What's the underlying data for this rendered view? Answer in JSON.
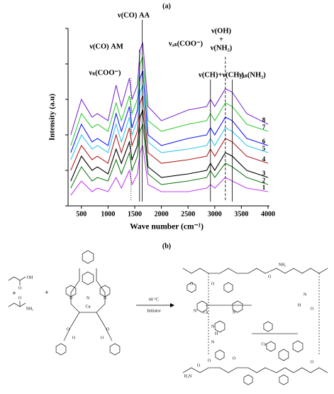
{
  "chart_data": {
    "type": "line",
    "panel": "(a)",
    "x_label": "Wave number (cm⁻¹)",
    "y_label": "Intensity (a.u)",
    "x": [
      300,
      500,
      700,
      800,
      1000,
      1150,
      1250,
      1400,
      1450,
      1550,
      1600,
      1650,
      1750,
      2000,
      2500,
      2850,
      2920,
      3000,
      3200,
      3330,
      3600,
      4000
    ],
    "xlim": [
      250,
      4000
    ],
    "xticks": [
      500,
      1000,
      1500,
      2000,
      2500,
      3000,
      3500,
      4000
    ],
    "ylim": [
      0,
      100
    ],
    "series": [
      {
        "name": "1",
        "color": "#c040f0",
        "values": [
          6,
          14,
          8,
          10,
          8,
          16,
          10,
          20,
          12,
          18,
          30,
          34,
          12,
          8,
          8,
          10,
          12,
          10,
          16,
          14,
          10,
          8
        ]
      },
      {
        "name": "2",
        "color": "#1e7d1e",
        "values": [
          10,
          22,
          14,
          16,
          14,
          26,
          18,
          30,
          20,
          28,
          42,
          46,
          18,
          12,
          14,
          16,
          20,
          16,
          24,
          22,
          16,
          12
        ]
      },
      {
        "name": "3",
        "color": "#000000",
        "values": [
          14,
          28,
          20,
          22,
          18,
          32,
          24,
          36,
          26,
          34,
          50,
          54,
          22,
          16,
          18,
          20,
          24,
          20,
          30,
          28,
          20,
          16
        ]
      },
      {
        "name": "4",
        "color": "#b22222",
        "values": [
          20,
          34,
          26,
          28,
          24,
          40,
          30,
          44,
          34,
          42,
          58,
          62,
          30,
          24,
          26,
          28,
          32,
          28,
          38,
          36,
          28,
          24
        ]
      },
      {
        "name": "5",
        "color": "#33c6ee",
        "values": [
          26,
          40,
          32,
          34,
          30,
          46,
          36,
          50,
          40,
          48,
          64,
          68,
          36,
          30,
          32,
          34,
          38,
          34,
          44,
          42,
          34,
          30
        ]
      },
      {
        "name": "6",
        "color": "#1a1aff",
        "values": [
          30,
          46,
          36,
          38,
          34,
          52,
          42,
          56,
          44,
          54,
          72,
          76,
          40,
          34,
          38,
          40,
          44,
          40,
          50,
          48,
          38,
          34
        ]
      },
      {
        "name": "7",
        "color": "#33cc33",
        "values": [
          34,
          52,
          44,
          46,
          42,
          58,
          48,
          62,
          52,
          60,
          80,
          84,
          48,
          42,
          46,
          48,
          52,
          48,
          58,
          56,
          46,
          42
        ]
      },
      {
        "name": "8",
        "color": "#7b2fd6",
        "values": [
          40,
          60,
          50,
          52,
          48,
          68,
          56,
          72,
          60,
          68,
          88,
          92,
          56,
          48,
          54,
          56,
          60,
          56,
          66,
          64,
          52,
          46
        ]
      }
    ],
    "annotations": [
      {
        "text": "ν(CO) AA",
        "x": 1640
      },
      {
        "text": "ν(CO) AM",
        "x": 1590
      },
      {
        "text": "νₐₛ(COO⁻)",
        "x": 1610
      },
      {
        "text": "νₛ(COO⁻)",
        "x": 1430
      },
      {
        "text": "ν(CH)+ν(CH₂)",
        "x": 2920
      },
      {
        "text": [
          "ν(OH)",
          "+",
          "ν(NH₂)"
        ],
        "x": 3200
      },
      {
        "text": "νₐₛ(NH₂)",
        "x": 3330
      }
    ]
  },
  "scheme": {
    "panel": "(b)",
    "conditions": [
      "60 °C",
      "Initiator"
    ],
    "labels": [
      "OH",
      "O",
      "+",
      "O",
      "NH₂",
      "+",
      "N",
      "N",
      "N",
      "Cu",
      "O",
      "O",
      "O",
      "O",
      "NH₂",
      "O",
      "O",
      "O",
      "N",
      "H",
      "O",
      "Cu",
      "N",
      "N",
      "N",
      "H",
      "N",
      "O",
      "O",
      "Cu",
      "H₂N",
      "O",
      "O"
    ]
  }
}
